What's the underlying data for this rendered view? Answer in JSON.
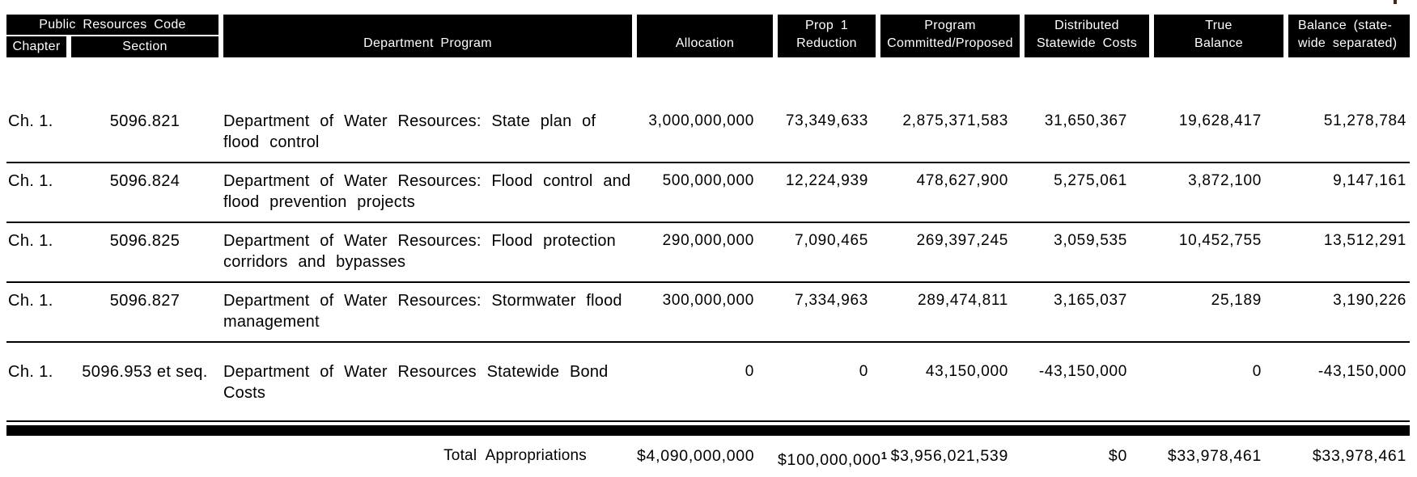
{
  "colors": {
    "header_bg": "#000000",
    "header_text": "#ffffff",
    "body_text": "#000000",
    "page_bg": "#ffffff"
  },
  "table": {
    "header": {
      "group_title": "Public Resources Code",
      "chapter": "Chapter",
      "section": "Section",
      "department_program": "Department Program",
      "allocation": "Allocation",
      "prop1": [
        "Prop 1",
        "Reduction"
      ],
      "program_committed": [
        "Program",
        "Committed/Proposed"
      ],
      "distributed": [
        "Distributed",
        "Statewide Costs"
      ],
      "true_balance": [
        "True",
        "Balance"
      ],
      "balance_statewide": [
        "Balance (state-",
        "wide separated)"
      ]
    },
    "rows": [
      {
        "chapter": "Ch. 1.",
        "section": "5096.821",
        "program_lines": [
          "Department of Water Resources: State plan of",
          "flood control"
        ],
        "allocation": "3,000,000,000",
        "prop1_reduction": "73,349,633",
        "program_committed": "2,875,371,583",
        "distributed_costs": "31,650,367",
        "true_balance": "19,628,417",
        "balance": "51,278,784"
      },
      {
        "chapter": "Ch. 1.",
        "section": "5096.824",
        "program_lines": [
          "Department of Water Resources: Flood control and",
          "flood prevention projects"
        ],
        "allocation": "500,000,000",
        "prop1_reduction": "12,224,939",
        "program_committed": "478,627,900",
        "distributed_costs": "5,275,061",
        "true_balance": "3,872,100",
        "balance": "9,147,161"
      },
      {
        "chapter": "Ch. 1.",
        "section": "5096.825",
        "program_lines": [
          "Department of Water Resources: Flood protection",
          "corridors and bypasses"
        ],
        "allocation": "290,000,000",
        "prop1_reduction": "7,090,465",
        "program_committed": "269,397,245",
        "distributed_costs": "3,059,535",
        "true_balance": "10,452,755",
        "balance": "13,512,291"
      },
      {
        "chapter": "Ch. 1.",
        "section": "5096.827",
        "program_lines": [
          "Department of Water Resources: Stormwater flood",
          "management"
        ],
        "allocation": "300,000,000",
        "prop1_reduction": "7,334,963",
        "program_committed": "289,474,811",
        "distributed_costs": "3,165,037",
        "true_balance": "25,189",
        "balance": "3,190,226"
      },
      {
        "chapter": "Ch. 1.",
        "section": "5096.953 et seq.",
        "program_lines": [
          "Department of Water Resources Statewide Bond",
          "Costs"
        ],
        "allocation": "0",
        "prop1_reduction": "0",
        "program_committed": "43,150,000",
        "distributed_costs": "-43,150,000",
        "true_balance": "0",
        "balance": "-43,150,000"
      }
    ],
    "totals": {
      "label": "Total Appropriations",
      "allocation": "$4,090,000,000",
      "prop1_reduction": "$100,000,000",
      "prop1_footnote": "1",
      "program_committed": "$3,956,021,539",
      "distributed_costs": "$0",
      "true_balance": "$33,978,461",
      "balance": "$33,978,461"
    }
  }
}
